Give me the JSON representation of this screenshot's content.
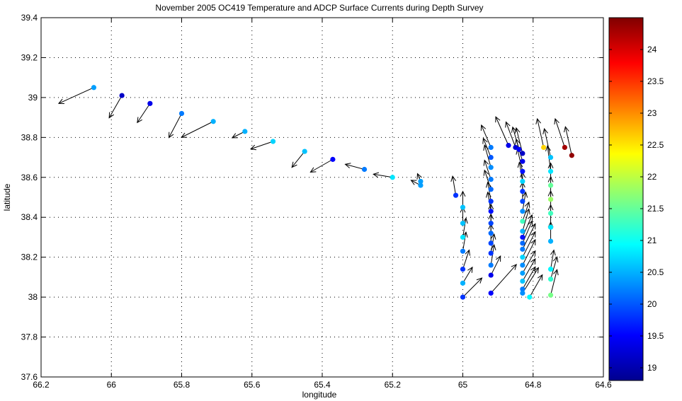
{
  "chart_data": {
    "type": "scatter",
    "title": "November 2005 OC419 Temperature and ADCP Surface Currents during Depth Survey",
    "xlabel": "longitude",
    "ylabel": "latitude",
    "xlim": [
      -66.2,
      -64.6
    ],
    "ylim": [
      37.6,
      39.4
    ],
    "x_ticks": [
      -66.2,
      -66.0,
      -65.8,
      -65.6,
      -65.4,
      -65.2,
      -65.0,
      -64.8,
      -64.6
    ],
    "x_tick_labels": [
      "66.2",
      "66",
      "65.8",
      "65.6",
      "65.4",
      "65.2",
      "65",
      "64.8",
      "64.6"
    ],
    "y_ticks": [
      37.6,
      37.8,
      38.0,
      38.2,
      38.4,
      38.6,
      38.8,
      39.0,
      39.2,
      39.4
    ],
    "y_tick_labels": [
      "37.6",
      "37.8",
      "38",
      "38.2",
      "38.4",
      "38.6",
      "38.8",
      "39",
      "39.2",
      "39.4"
    ],
    "grid": true,
    "colorbar": {
      "min": 18.8,
      "max": 24.5,
      "ticks": [
        19,
        19.5,
        20,
        20.5,
        21,
        21.5,
        22,
        22.5,
        23,
        23.5,
        24
      ],
      "tick_labels": [
        "19",
        "19.5",
        "20",
        "20.5",
        "21",
        "21.5",
        "22",
        "22.5",
        "23",
        "23.5",
        "24"
      ],
      "colormap": "jet"
    },
    "points": [
      {
        "lon": -66.05,
        "lat": 39.05,
        "temp": 20.4,
        "u": -0.55,
        "v": -0.25
      },
      {
        "lon": -65.97,
        "lat": 39.01,
        "temp": 19.2,
        "u": -0.2,
        "v": -0.35
      },
      {
        "lon": -65.89,
        "lat": 38.97,
        "temp": 19.4,
        "u": -0.2,
        "v": -0.3
      },
      {
        "lon": -65.8,
        "lat": 38.92,
        "temp": 20.2,
        "u": -0.2,
        "v": -0.38
      },
      {
        "lon": -65.71,
        "lat": 38.88,
        "temp": 20.5,
        "u": -0.5,
        "v": -0.25
      },
      {
        "lon": -65.62,
        "lat": 38.83,
        "temp": 20.5,
        "u": -0.2,
        "v": -0.1
      },
      {
        "lon": -65.54,
        "lat": 38.78,
        "temp": 20.7,
        "u": -0.35,
        "v": -0.12
      },
      {
        "lon": -65.45,
        "lat": 38.73,
        "temp": 20.6,
        "u": -0.2,
        "v": -0.25
      },
      {
        "lon": -65.37,
        "lat": 38.69,
        "temp": 19.5,
        "u": -0.35,
        "v": -0.2
      },
      {
        "lon": -65.28,
        "lat": 38.64,
        "temp": 20.2,
        "u": -0.3,
        "v": 0.08
      },
      {
        "lon": -65.2,
        "lat": 38.6,
        "temp": 20.8,
        "u": -0.3,
        "v": 0.05
      },
      {
        "lon": -65.12,
        "lat": 38.56,
        "temp": 20.4,
        "u": -0.15,
        "v": 0.08
      },
      {
        "lon": -65.12,
        "lat": 38.58,
        "temp": 20.4,
        "u": -0.05,
        "v": 0.12
      },
      {
        "lon": -65.02,
        "lat": 38.51,
        "temp": 19.8,
        "u": -0.05,
        "v": 0.3
      },
      {
        "lon": -65.0,
        "lat": 38.45,
        "temp": 20.6,
        "u": 0.0,
        "v": 0.25
      },
      {
        "lon": -65.0,
        "lat": 38.37,
        "temp": 20.6,
        "u": 0.0,
        "v": 0.25
      },
      {
        "lon": -65.0,
        "lat": 38.3,
        "temp": 20.8,
        "u": 0.05,
        "v": 0.3
      },
      {
        "lon": -65.0,
        "lat": 38.23,
        "temp": 20.2,
        "u": 0.05,
        "v": 0.3
      },
      {
        "lon": -65.0,
        "lat": 38.14,
        "temp": 19.8,
        "u": 0.1,
        "v": 0.3
      },
      {
        "lon": -65.0,
        "lat": 38.07,
        "temp": 20.5,
        "u": 0.15,
        "v": 0.25
      },
      {
        "lon": -65.0,
        "lat": 38.0,
        "temp": 19.8,
        "u": 0.3,
        "v": 0.3
      },
      {
        "lon": -64.92,
        "lat": 38.75,
        "temp": 20.2,
        "u": -0.15,
        "v": 0.35
      },
      {
        "lon": -64.92,
        "lat": 38.7,
        "temp": 20.0,
        "u": -0.12,
        "v": 0.3
      },
      {
        "lon": -64.92,
        "lat": 38.65,
        "temp": 20.3,
        "u": -0.1,
        "v": 0.35
      },
      {
        "lon": -64.92,
        "lat": 38.59,
        "temp": 20.2,
        "u": -0.1,
        "v": 0.3
      },
      {
        "lon": -64.92,
        "lat": 38.54,
        "temp": 20.1,
        "u": -0.1,
        "v": 0.3
      },
      {
        "lon": -64.92,
        "lat": 38.48,
        "temp": 19.8,
        "u": -0.05,
        "v": 0.3
      },
      {
        "lon": -64.92,
        "lat": 38.43,
        "temp": 19.6,
        "u": -0.05,
        "v": 0.3
      },
      {
        "lon": -64.92,
        "lat": 38.37,
        "temp": 19.9,
        "u": 0.0,
        "v": 0.3
      },
      {
        "lon": -64.92,
        "lat": 38.32,
        "temp": 20.1,
        "u": 0.0,
        "v": 0.3
      },
      {
        "lon": -64.92,
        "lat": 38.27,
        "temp": 19.9,
        "u": 0.0,
        "v": 0.3
      },
      {
        "lon": -64.92,
        "lat": 38.22,
        "temp": 19.8,
        "u": 0.05,
        "v": 0.3
      },
      {
        "lon": -64.92,
        "lat": 38.16,
        "temp": 20.2,
        "u": 0.05,
        "v": 0.32
      },
      {
        "lon": -64.92,
        "lat": 38.11,
        "temp": 19.4,
        "u": 0.15,
        "v": 0.3
      },
      {
        "lon": -64.92,
        "lat": 38.02,
        "temp": 19.5,
        "u": 0.4,
        "v": 0.45
      },
      {
        "lon": -64.87,
        "lat": 38.76,
        "temp": 19.4,
        "u": -0.2,
        "v": 0.45
      },
      {
        "lon": -64.85,
        "lat": 38.75,
        "temp": 19.3,
        "u": -0.15,
        "v": 0.4
      },
      {
        "lon": -64.84,
        "lat": 38.74,
        "temp": 19.5,
        "u": -0.1,
        "v": 0.35
      },
      {
        "lon": -64.83,
        "lat": 38.72,
        "temp": 19.2,
        "u": -0.1,
        "v": 0.4
      },
      {
        "lon": -64.83,
        "lat": 38.68,
        "temp": 19.4,
        "u": -0.1,
        "v": 0.35
      },
      {
        "lon": -64.83,
        "lat": 38.63,
        "temp": 19.6,
        "u": -0.08,
        "v": 0.35
      },
      {
        "lon": -64.83,
        "lat": 38.58,
        "temp": 20.7,
        "u": -0.05,
        "v": 0.3
      },
      {
        "lon": -64.83,
        "lat": 38.53,
        "temp": 19.8,
        "u": 0.0,
        "v": 0.3
      },
      {
        "lon": -64.83,
        "lat": 38.48,
        "temp": 19.9,
        "u": 0.0,
        "v": 0.3
      },
      {
        "lon": -64.83,
        "lat": 38.43,
        "temp": 20.3,
        "u": 0.05,
        "v": 0.3
      },
      {
        "lon": -64.83,
        "lat": 38.38,
        "temp": 21.3,
        "u": 0.1,
        "v": 0.3
      },
      {
        "lon": -64.83,
        "lat": 38.33,
        "temp": 20.5,
        "u": 0.1,
        "v": 0.35
      },
      {
        "lon": -64.83,
        "lat": 38.3,
        "temp": 19.6,
        "u": 0.15,
        "v": 0.35
      },
      {
        "lon": -64.83,
        "lat": 38.27,
        "temp": 20.1,
        "u": 0.15,
        "v": 0.35
      },
      {
        "lon": -64.83,
        "lat": 38.24,
        "temp": 20.2,
        "u": 0.2,
        "v": 0.4
      },
      {
        "lon": -64.83,
        "lat": 38.2,
        "temp": 20.7,
        "u": 0.2,
        "v": 0.4
      },
      {
        "lon": -64.83,
        "lat": 38.16,
        "temp": 20.3,
        "u": 0.2,
        "v": 0.4
      },
      {
        "lon": -64.83,
        "lat": 38.12,
        "temp": 20.4,
        "u": 0.2,
        "v": 0.35
      },
      {
        "lon": -64.83,
        "lat": 38.08,
        "temp": 20.6,
        "u": 0.2,
        "v": 0.35
      },
      {
        "lon": -64.83,
        "lat": 38.04,
        "temp": 20.2,
        "u": 0.2,
        "v": 0.35
      },
      {
        "lon": -64.83,
        "lat": 38.02,
        "temp": 20.3,
        "u": 0.25,
        "v": 0.4
      },
      {
        "lon": -64.81,
        "lat": 38.0,
        "temp": 20.9,
        "u": 0.2,
        "v": 0.35
      },
      {
        "lon": -64.77,
        "lat": 38.75,
        "temp": 22.6,
        "u": -0.1,
        "v": 0.45
      },
      {
        "lon": -64.75,
        "lat": 38.7,
        "temp": 20.6,
        "u": -0.1,
        "v": 0.45
      },
      {
        "lon": -64.75,
        "lat": 38.63,
        "temp": 20.8,
        "u": -0.05,
        "v": 0.4
      },
      {
        "lon": -64.75,
        "lat": 38.56,
        "temp": 21.5,
        "u": 0.0,
        "v": 0.35
      },
      {
        "lon": -64.75,
        "lat": 38.49,
        "temp": 21.8,
        "u": 0.0,
        "v": 0.35
      },
      {
        "lon": -64.75,
        "lat": 38.42,
        "temp": 21.3,
        "u": 0.0,
        "v": 0.35
      },
      {
        "lon": -64.75,
        "lat": 38.35,
        "temp": 20.8,
        "u": 0.0,
        "v": 0.35
      },
      {
        "lon": -64.75,
        "lat": 38.28,
        "temp": 20.5,
        "u": 0.0,
        "v": 0.3
      },
      {
        "lon": -64.75,
        "lat": 38.14,
        "temp": 20.9,
        "u": 0.05,
        "v": 0.3
      },
      {
        "lon": -64.75,
        "lat": 38.09,
        "temp": 21.2,
        "u": 0.1,
        "v": 0.35
      },
      {
        "lon": -64.75,
        "lat": 38.01,
        "temp": 21.6,
        "u": 0.1,
        "v": 0.4
      },
      {
        "lon": -64.71,
        "lat": 38.75,
        "temp": 24.3,
        "u": -0.15,
        "v": 0.45
      },
      {
        "lon": -64.69,
        "lat": 38.71,
        "temp": 24.4,
        "u": -0.1,
        "v": 0.45
      }
    ]
  }
}
